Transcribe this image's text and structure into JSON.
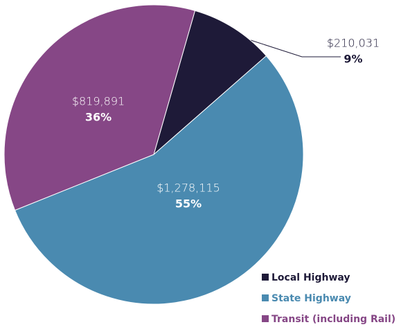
{
  "chart_data": {
    "type": "pie",
    "categories": [
      "Local Highway",
      "State Highway",
      "Transit (including Rail)"
    ],
    "values": [
      210031,
      1278115,
      819891
    ],
    "value_labels": [
      "$210,031",
      "$1,278,115",
      "$819,891"
    ],
    "percents": [
      9,
      55,
      36
    ],
    "percent_labels": [
      "9%",
      "55%",
      "36%"
    ],
    "colors": [
      "#1e1a38",
      "#4a8ab0",
      "#864786"
    ]
  }
}
